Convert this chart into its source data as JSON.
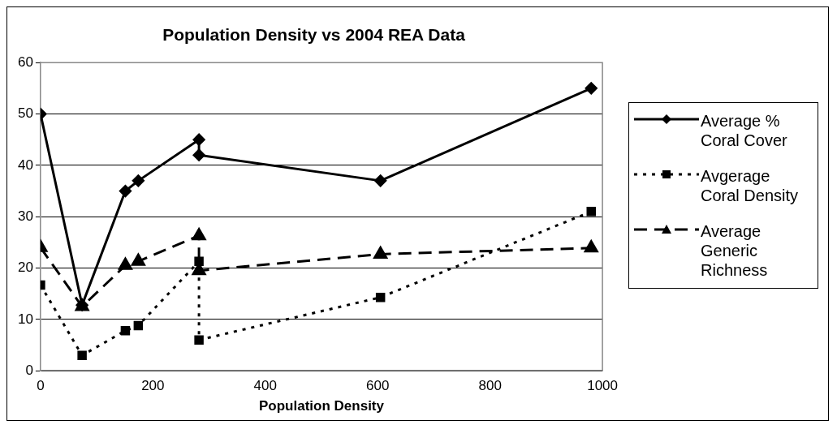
{
  "chart_data": {
    "type": "line",
    "title": "Population Density vs 2004 REA Data",
    "xlabel": "Population Density",
    "xlim": [
      0,
      1000
    ],
    "xticks": [
      0,
      200,
      400,
      600,
      800,
      1000
    ],
    "ylim": [
      0,
      60
    ],
    "yticks": [
      0,
      10,
      20,
      30,
      40,
      50,
      60
    ],
    "grid": "y",
    "legend": "right",
    "series": [
      {
        "name": "Average % Coral Cover",
        "color": "#000000",
        "marker": "diamond",
        "line_style": "solid",
        "x": [
          0,
          74,
          151,
          174,
          282,
          282,
          605,
          980
        ],
        "values": [
          50,
          12.8,
          35,
          37,
          45,
          42,
          37,
          55
        ]
      },
      {
        "name": "Avgerage Coral Density",
        "color": "#000000",
        "marker": "square",
        "line_style": "dotted",
        "x": [
          0,
          74,
          151,
          174,
          282,
          282,
          605,
          980
        ],
        "values": [
          16.7,
          3,
          7.8,
          8.8,
          21.3,
          6,
          14.3,
          31
        ]
      },
      {
        "name": "Average Generic Richness",
        "color": "#000000",
        "marker": "triangle",
        "line_style": "dashed",
        "x": [
          0,
          74,
          151,
          174,
          282,
          282,
          605,
          980
        ],
        "values": [
          24,
          12.5,
          20.5,
          21.3,
          26.3,
          19.5,
          22.7,
          23.9
        ]
      }
    ]
  }
}
